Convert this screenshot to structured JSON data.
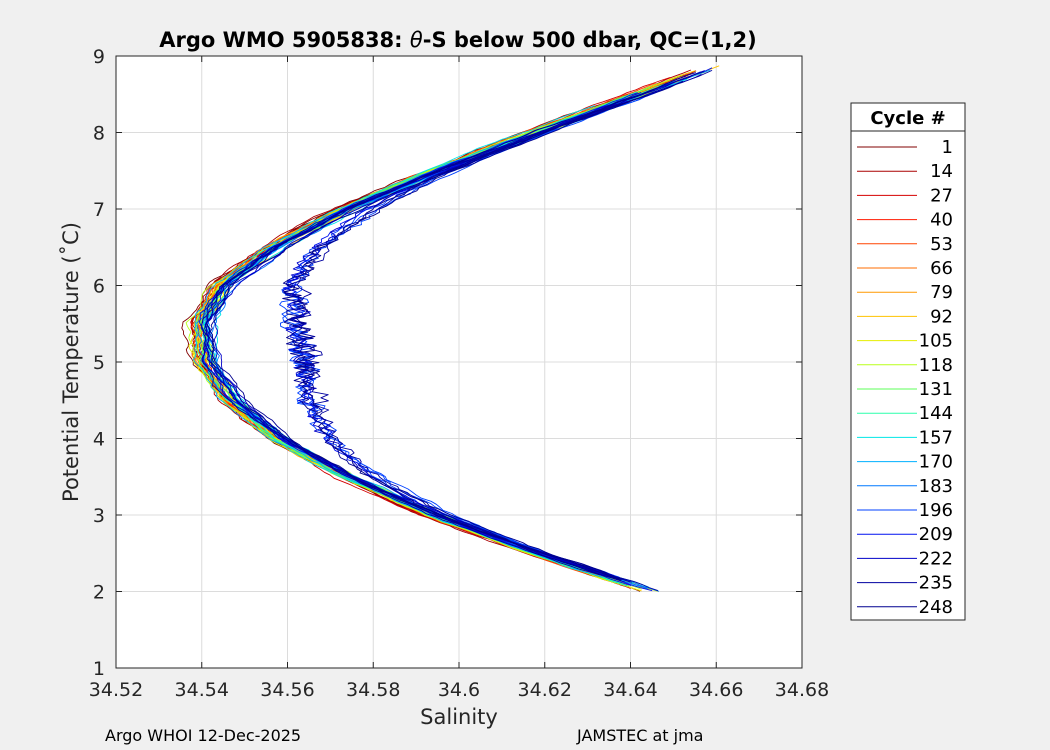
{
  "chart_data": {
    "type": "line",
    "title_prefix": "Argo WMO 5905838: ",
    "title_theta": "θ",
    "title_suffix": "-S below 500 dbar,  QC=(1,2)",
    "xlabel": "Salinity",
    "ylabel": "Potential Temperature (˚C)",
    "xlim": [
      34.52,
      34.68
    ],
    "ylim": [
      1,
      9
    ],
    "xticks": [
      34.52,
      34.54,
      34.56,
      34.58,
      34.6,
      34.62,
      34.64,
      34.66,
      34.68
    ],
    "xtick_labels": [
      "34.52",
      "34.54",
      "34.56",
      "34.58",
      "34.6",
      "34.62",
      "34.64",
      "34.66",
      "34.68"
    ],
    "yticks": [
      1,
      2,
      3,
      4,
      5,
      6,
      7,
      8,
      9
    ],
    "ytick_labels": [
      "1",
      "2",
      "3",
      "4",
      "5",
      "6",
      "7",
      "8",
      "9"
    ],
    "grid": true,
    "legend_title": "Cycle #",
    "legend_position": "right",
    "series": [
      {
        "name": "1",
        "color": "#800000"
      },
      {
        "name": "14",
        "color": "#aa0000"
      },
      {
        "name": "27",
        "color": "#d40000"
      },
      {
        "name": "40",
        "color": "#ff1a00"
      },
      {
        "name": "53",
        "color": "#ff4400"
      },
      {
        "name": "66",
        "color": "#ff6e00"
      },
      {
        "name": "79",
        "color": "#ff9900"
      },
      {
        "name": "92",
        "color": "#ffc300"
      },
      {
        "name": "105",
        "color": "#e6ee00"
      },
      {
        "name": "118",
        "color": "#b9ff1a"
      },
      {
        "name": "131",
        "color": "#5cff59"
      },
      {
        "name": "144",
        "color": "#2bffab"
      },
      {
        "name": "157",
        "color": "#00e6e6"
      },
      {
        "name": "170",
        "color": "#00b0ff"
      },
      {
        "name": "183",
        "color": "#0078ff"
      },
      {
        "name": "196",
        "color": "#0040ff"
      },
      {
        "name": "209",
        "color": "#0010f0"
      },
      {
        "name": "222",
        "color": "#0000c8"
      },
      {
        "name": "235",
        "color": "#0000a0"
      },
      {
        "name": "248",
        "color": "#00008f"
      }
    ],
    "profile_shape": {
      "temps": [
        2.0,
        2.5,
        3.0,
        3.5,
        4.0,
        4.5,
        5.0,
        5.5,
        6.0,
        6.5,
        7.0,
        7.5,
        8.0,
        8.5,
        8.9
      ],
      "salinity_base": [
        34.644,
        34.617,
        34.593,
        34.573,
        34.557,
        34.546,
        34.54,
        34.539,
        34.544,
        34.556,
        34.573,
        34.594,
        34.617,
        34.641,
        34.66
      ],
      "salinity_offset_min": -0.002,
      "salinity_offset_max": 0.004,
      "anomalous_offset_max": 0.045
    }
  },
  "footer": {
    "left": "Argo WHOI 12-Dec-2025",
    "right": "JAMSTEC at jma"
  }
}
